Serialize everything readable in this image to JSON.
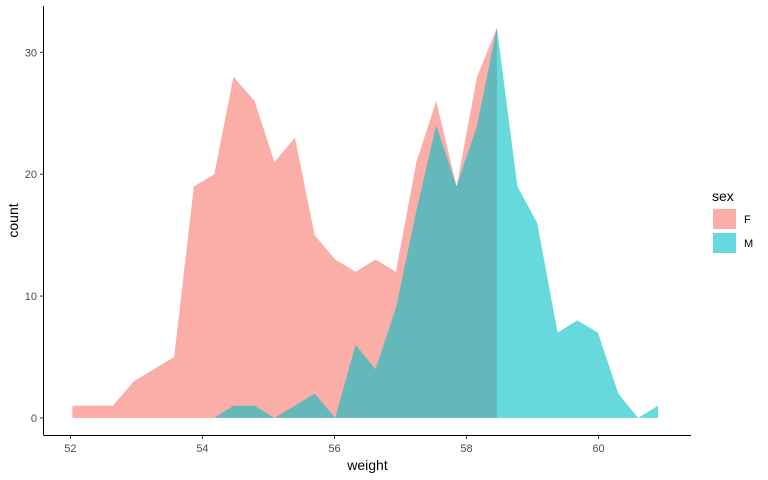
{
  "chart_data": {
    "type": "area",
    "xlabel": "weight",
    "ylabel": "count",
    "xlim": [
      51.6,
      61.4
    ],
    "ylim": [
      -1.4,
      33.8
    ],
    "xticks": [
      52,
      54,
      56,
      58,
      60
    ],
    "xtick_labels": [
      "52",
      "54",
      "56",
      "58",
      "60"
    ],
    "yticks": [
      0,
      10,
      20,
      30
    ],
    "ytick_labels": [
      "0",
      "10",
      "20",
      "30"
    ],
    "grid": false,
    "legend": {
      "title": "sex",
      "position": "right",
      "entries": [
        {
          "label": "F",
          "color": "#F8766D"
        },
        {
          "label": "M",
          "color": "#00BFC4"
        }
      ]
    },
    "fill_alpha": 0.6,
    "series": [
      {
        "name": "F",
        "color": "#F8766D",
        "x": [
          52.03,
          52.33,
          52.64,
          52.96,
          53.26,
          53.57,
          53.87,
          54.18,
          54.47,
          54.79,
          55.09,
          55.4,
          55.7,
          56.01,
          56.32,
          56.62,
          56.93,
          57.24,
          57.54,
          57.85,
          58.16,
          58.46
        ],
        "y": [
          1,
          1,
          1,
          3,
          4,
          5,
          19,
          20,
          28,
          26,
          21,
          23,
          15,
          13,
          12,
          13,
          12,
          21,
          26,
          19,
          28,
          32
        ]
      },
      {
        "name": "M",
        "color": "#00BFC4",
        "x": [
          54.18,
          54.47,
          54.79,
          55.09,
          55.4,
          55.7,
          56.01,
          56.32,
          56.62,
          56.93,
          57.24,
          57.54,
          57.85,
          58.16,
          58.46,
          58.77,
          59.07,
          59.38,
          59.68,
          59.99,
          60.3,
          60.6,
          60.9
        ],
        "y": [
          0,
          1,
          1,
          0,
          1,
          2,
          0,
          6,
          4,
          9,
          17,
          24,
          19,
          24,
          32,
          19,
          16,
          7,
          8,
          7,
          2,
          0,
          1
        ]
      }
    ]
  }
}
